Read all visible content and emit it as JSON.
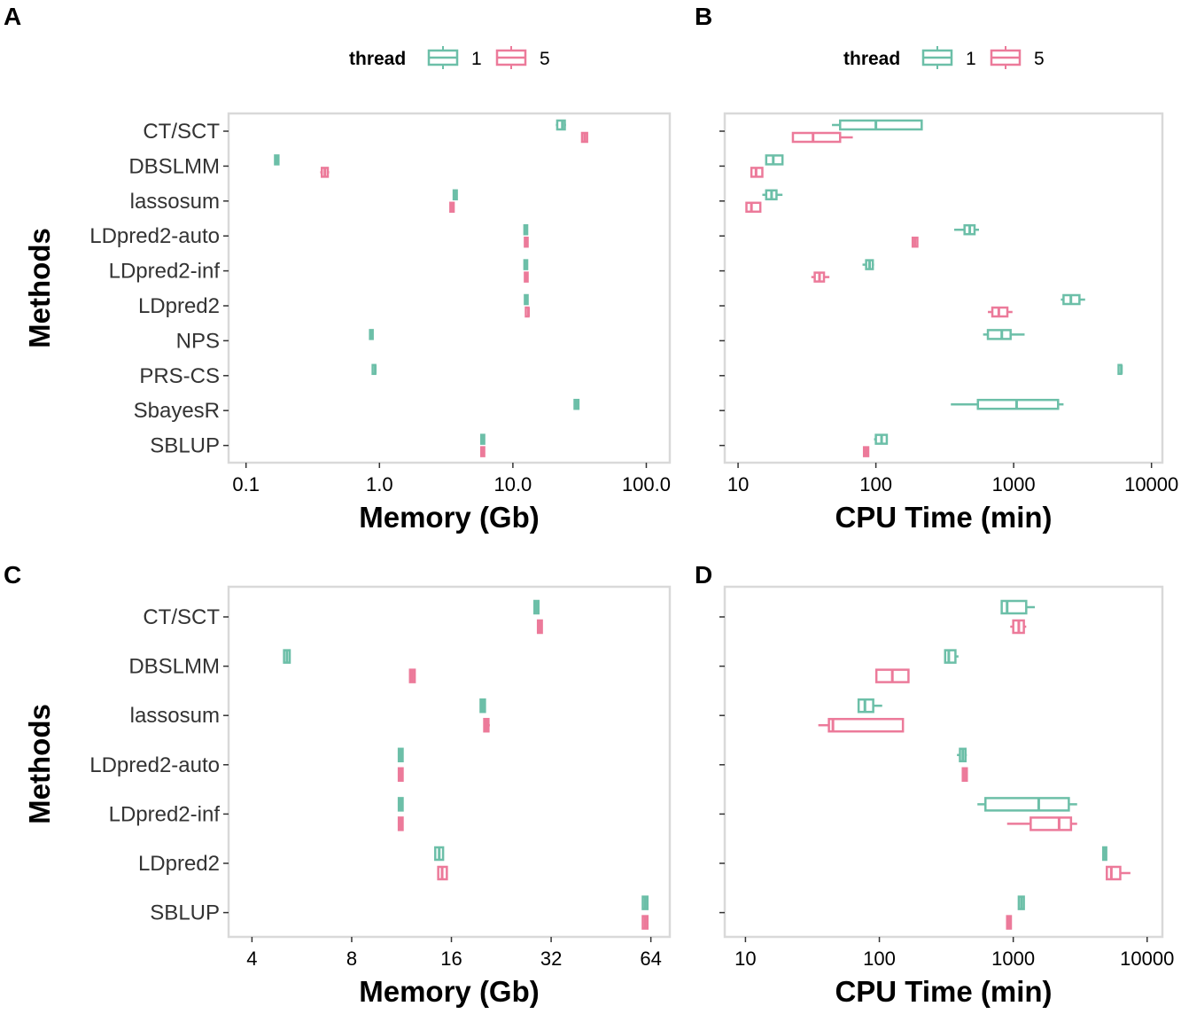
{
  "colors": {
    "thread1": "#6cbfa8",
    "thread5": "#ec7a9a"
  },
  "legend": {
    "title": "thread",
    "labels": [
      "1",
      "5"
    ]
  },
  "chart_data": [
    {
      "panel": "A",
      "type": "boxplot",
      "xlabel": "Memory (Gb)",
      "ylabel": "Methods",
      "xscale": "log10",
      "xlim": [
        0.074,
        150
      ],
      "xticks": [
        0.1,
        1.0,
        10.0,
        100.0
      ],
      "xtick_labels": [
        "0.1",
        "1.0",
        "10.0",
        "100.0"
      ],
      "categories": [
        "CT/SCT",
        "DBSLMM",
        "lassosum",
        "LDpred2-auto",
        "LDpred2-inf",
        "LDpred2",
        "NPS",
        "PRS-CS",
        "SbayesR",
        "SBLUP"
      ],
      "series": [
        {
          "name": "1",
          "values": [
            {
              "category": "CT/SCT",
              "box": [
                21.5,
                23.5,
                24.5
              ],
              "whisker": [
                21,
                25
              ]
            },
            {
              "category": "DBSLMM",
              "box": [
                0.165,
                0.17,
                0.175
              ],
              "whisker": [
                0.165,
                0.175
              ]
            },
            {
              "category": "lassosum",
              "box": [
                3.6,
                3.7,
                3.8
              ],
              "whisker": [
                3.6,
                3.8
              ]
            },
            {
              "category": "LDpred2-auto",
              "box": [
                12.2,
                12.5,
                12.8
              ],
              "whisker": [
                12.2,
                12.8
              ]
            },
            {
              "category": "LDpred2-inf",
              "box": [
                12.2,
                12.5,
                12.8
              ],
              "whisker": [
                12.2,
                12.8
              ]
            },
            {
              "category": "LDpred2",
              "box": [
                12.3,
                12.6,
                12.9
              ],
              "whisker": [
                12.3,
                12.9
              ]
            },
            {
              "category": "NPS",
              "box": [
                0.85,
                0.87,
                0.89
              ],
              "whisker": [
                0.85,
                0.89
              ]
            },
            {
              "category": "PRS-CS",
              "box": [
                0.91,
                0.93,
                0.95
              ],
              "whisker": [
                0.91,
                0.95
              ]
            },
            {
              "category": "SbayesR",
              "box": [
                29,
                30,
                31
              ],
              "whisker": [
                29,
                31
              ]
            },
            {
              "category": "SBLUP",
              "box": [
                5.8,
                5.95,
                6.1
              ],
              "whisker": [
                5.8,
                6.1
              ]
            }
          ]
        },
        {
          "name": "5",
          "values": [
            {
              "category": "CT/SCT",
              "box": [
                33,
                34.5,
                36
              ],
              "whisker": [
                33,
                36
              ]
            },
            {
              "category": "DBSLMM",
              "box": [
                0.37,
                0.39,
                0.41
              ],
              "whisker": [
                0.36,
                0.42
              ]
            },
            {
              "category": "lassosum",
              "box": [
                3.4,
                3.5,
                3.6
              ],
              "whisker": [
                3.4,
                3.6
              ]
            },
            {
              "category": "LDpred2-auto",
              "box": [
                12.3,
                12.6,
                12.9
              ],
              "whisker": [
                12.3,
                12.9
              ]
            },
            {
              "category": "LDpred2-inf",
              "box": [
                12.3,
                12.6,
                12.9
              ],
              "whisker": [
                12.3,
                12.9
              ]
            },
            {
              "category": "LDpred2",
              "box": [
                12.8,
                13.1,
                13.4
              ],
              "whisker": [
                12.8,
                13.4
              ]
            },
            {
              "category": "SBLUP",
              "box": [
                5.8,
                5.95,
                6.1
              ],
              "whisker": [
                5.8,
                6.1
              ]
            }
          ]
        }
      ]
    },
    {
      "panel": "B",
      "type": "boxplot",
      "xlabel": "CPU Time (min)",
      "xscale": "log10",
      "xlim": [
        8,
        12000
      ],
      "xticks": [
        10,
        100,
        1000,
        10000
      ],
      "xtick_labels": [
        "10",
        "100",
        "1000",
        "10000"
      ],
      "categories": [
        "CT/SCT",
        "DBSLMM",
        "lassosum",
        "LDpred2-auto",
        "LDpred2-inf",
        "LDpred2",
        "NPS",
        "PRS-CS",
        "SbayesR",
        "SBLUP"
      ],
      "series": [
        {
          "name": "1",
          "values": [
            {
              "category": "CT/SCT",
              "box": [
                55,
                100,
                215
              ],
              "whisker": [
                48,
                215
              ]
            },
            {
              "category": "DBSLMM",
              "box": [
                16,
                18,
                21
              ],
              "whisker": [
                16,
                21
              ]
            },
            {
              "category": "lassosum",
              "box": [
                16,
                17.5,
                19
              ],
              "whisker": [
                15,
                21
              ]
            },
            {
              "category": "LDpred2-auto",
              "box": [
                440,
                480,
                520
              ],
              "whisker": [
                370,
                560
              ]
            },
            {
              "category": "LDpred2-inf",
              "box": [
                85,
                90,
                95
              ],
              "whisker": [
                80,
                97
              ]
            },
            {
              "category": "LDpred2",
              "box": [
                2300,
                2600,
                3000
              ],
              "whisker": [
                2200,
                3300
              ]
            },
            {
              "category": "NPS",
              "box": [
                650,
                820,
                950
              ],
              "whisker": [
                600,
                1200
              ]
            },
            {
              "category": "PRS-CS",
              "box": [
                5900,
                6050,
                6150
              ],
              "whisker": [
                5900,
                6150
              ]
            },
            {
              "category": "SbayesR",
              "box": [
                550,
                1050,
                2100
              ],
              "whisker": [
                350,
                2300
              ]
            },
            {
              "category": "SBLUP",
              "box": [
                100,
                110,
                120
              ],
              "whisker": [
                97,
                122
              ]
            }
          ]
        },
        {
          "name": "5",
          "values": [
            {
              "category": "CT/SCT",
              "box": [
                25,
                35,
                55
              ],
              "whisker": [
                25,
                68
              ]
            },
            {
              "category": "DBSLMM",
              "box": [
                12.5,
                13.5,
                15
              ],
              "whisker": [
                12.5,
                15
              ]
            },
            {
              "category": "lassosum",
              "box": [
                11.5,
                12.5,
                14.5
              ],
              "whisker": [
                11.5,
                14.5
              ]
            },
            {
              "category": "LDpred2-auto",
              "box": [
                185,
                192,
                200
              ],
              "whisker": [
                185,
                200
              ]
            },
            {
              "category": "LDpred2-inf",
              "box": [
                36,
                39,
                42
              ],
              "whisker": [
                34,
                46
              ]
            },
            {
              "category": "LDpred2",
              "box": [
                700,
                780,
                900
              ],
              "whisker": [
                650,
                980
              ]
            },
            {
              "category": "SBLUP",
              "box": [
                82,
                85,
                88
              ],
              "whisker": [
                82,
                88
              ]
            }
          ]
        }
      ]
    },
    {
      "panel": "C",
      "type": "boxplot",
      "xlabel": "Memory (Gb)",
      "ylabel": "Methods",
      "xscale": "log2",
      "xlim": [
        3.4,
        73
      ],
      "xticks": [
        4,
        8,
        16,
        32,
        64
      ],
      "xtick_labels": [
        "4",
        "8",
        "16",
        "32",
        "64"
      ],
      "categories": [
        "CT/SCT",
        "DBSLMM",
        "lassosum",
        "LDpred2-auto",
        "LDpred2-inf",
        "LDpred2",
        "SBLUP"
      ],
      "series": [
        {
          "name": "1",
          "values": [
            {
              "category": "CT/SCT",
              "box": [
                28.5,
                28.9,
                29.3
              ],
              "whisker": [
                28.5,
                29.3
              ]
            },
            {
              "category": "DBSLMM",
              "box": [
                5.0,
                5.1,
                5.2
              ],
              "whisker": [
                5.0,
                5.2
              ]
            },
            {
              "category": "lassosum",
              "box": [
                19.6,
                19.9,
                20.2
              ],
              "whisker": [
                19.6,
                20.2
              ]
            },
            {
              "category": "LDpred2-auto",
              "box": [
                11.1,
                11.25,
                11.4
              ],
              "whisker": [
                11.1,
                11.4
              ]
            },
            {
              "category": "LDpred2-inf",
              "box": [
                11.1,
                11.25,
                11.4
              ],
              "whisker": [
                11.1,
                11.4
              ]
            },
            {
              "category": "LDpred2",
              "box": [
                14.3,
                14.7,
                15.1
              ],
              "whisker": [
                14.3,
                15.1
              ]
            },
            {
              "category": "SBLUP",
              "box": [
                60.5,
                61.5,
                62.5
              ],
              "whisker": [
                60.5,
                62.5
              ]
            }
          ]
        },
        {
          "name": "5",
          "values": [
            {
              "category": "CT/SCT",
              "box": [
                29.2,
                29.6,
                30.0
              ],
              "whisker": [
                29.2,
                30.0
              ]
            },
            {
              "category": "DBSLMM",
              "box": [
                12.0,
                12.2,
                12.4
              ],
              "whisker": [
                12.0,
                12.4
              ]
            },
            {
              "category": "lassosum",
              "box": [
                20.1,
                20.4,
                20.7
              ],
              "whisker": [
                20.1,
                20.9
              ]
            },
            {
              "category": "LDpred2-auto",
              "box": [
                11.1,
                11.25,
                11.4
              ],
              "whisker": [
                11.1,
                11.4
              ]
            },
            {
              "category": "LDpred2-inf",
              "box": [
                11.1,
                11.25,
                11.4
              ],
              "whisker": [
                11.1,
                11.4
              ]
            },
            {
              "category": "LDpred2",
              "box": [
                14.6,
                15.0,
                15.5
              ],
              "whisker": [
                14.6,
                15.5
              ]
            },
            {
              "category": "SBLUP",
              "box": [
                60.5,
                61.5,
                62.5
              ],
              "whisker": [
                60.5,
                62.5
              ]
            }
          ]
        }
      ]
    },
    {
      "panel": "D",
      "type": "boxplot",
      "xlabel": "CPU Time (min)",
      "xscale": "log10",
      "xlim": [
        7,
        13000
      ],
      "xticks": [
        10,
        100,
        1000,
        10000
      ],
      "xtick_labels": [
        "10",
        "100",
        "1000",
        "10000"
      ],
      "categories": [
        "CT/SCT",
        "DBSLMM",
        "lassosum",
        "LDpred2-auto",
        "LDpred2-inf",
        "LDpred2",
        "SBLUP"
      ],
      "series": [
        {
          "name": "1",
          "values": [
            {
              "category": "CT/SCT",
              "box": [
                820,
                900,
                1250
              ],
              "whisker": [
                820,
                1450
              ]
            },
            {
              "category": "DBSLMM",
              "box": [
                310,
                330,
                370
              ],
              "whisker": [
                310,
                390
              ]
            },
            {
              "category": "lassosum",
              "box": [
                70,
                78,
                90
              ],
              "whisker": [
                70,
                105
              ]
            },
            {
              "category": "LDpred2-auto",
              "box": [
                400,
                420,
                440
              ],
              "whisker": [
                380,
                450
              ]
            },
            {
              "category": "LDpred2-inf",
              "box": [
                620,
                1550,
                2600
              ],
              "whisker": [
                540,
                3000
              ]
            },
            {
              "category": "LDpred2",
              "box": [
                4700,
                4800,
                4950
              ],
              "whisker": [
                4700,
                4950
              ]
            },
            {
              "category": "SBLUP",
              "box": [
                1100,
                1150,
                1200
              ],
              "whisker": [
                1100,
                1200
              ]
            }
          ]
        },
        {
          "name": "5",
          "values": [
            {
              "category": "CT/SCT",
              "box": [
                1000,
                1100,
                1200
              ],
              "whisker": [
                950,
                1250
              ]
            },
            {
              "category": "DBSLMM",
              "box": [
                95,
                125,
                165
              ],
              "whisker": [
                95,
                165
              ]
            },
            {
              "category": "lassosum",
              "box": [
                42,
                45,
                150
              ],
              "whisker": [
                35,
                150
              ]
            },
            {
              "category": "LDpred2-auto",
              "box": [
                420,
                435,
                450
              ],
              "whisker": [
                420,
                450
              ]
            },
            {
              "category": "LDpred2-inf",
              "box": [
                1350,
                2200,
                2700
              ],
              "whisker": [
                900,
                3000
              ]
            },
            {
              "category": "LDpred2",
              "box": [
                5000,
                5400,
                6300
              ],
              "whisker": [
                5000,
                7500
              ]
            },
            {
              "category": "SBLUP",
              "box": [
                900,
                930,
                960
              ],
              "whisker": [
                900,
                960
              ]
            }
          ]
        }
      ]
    }
  ]
}
